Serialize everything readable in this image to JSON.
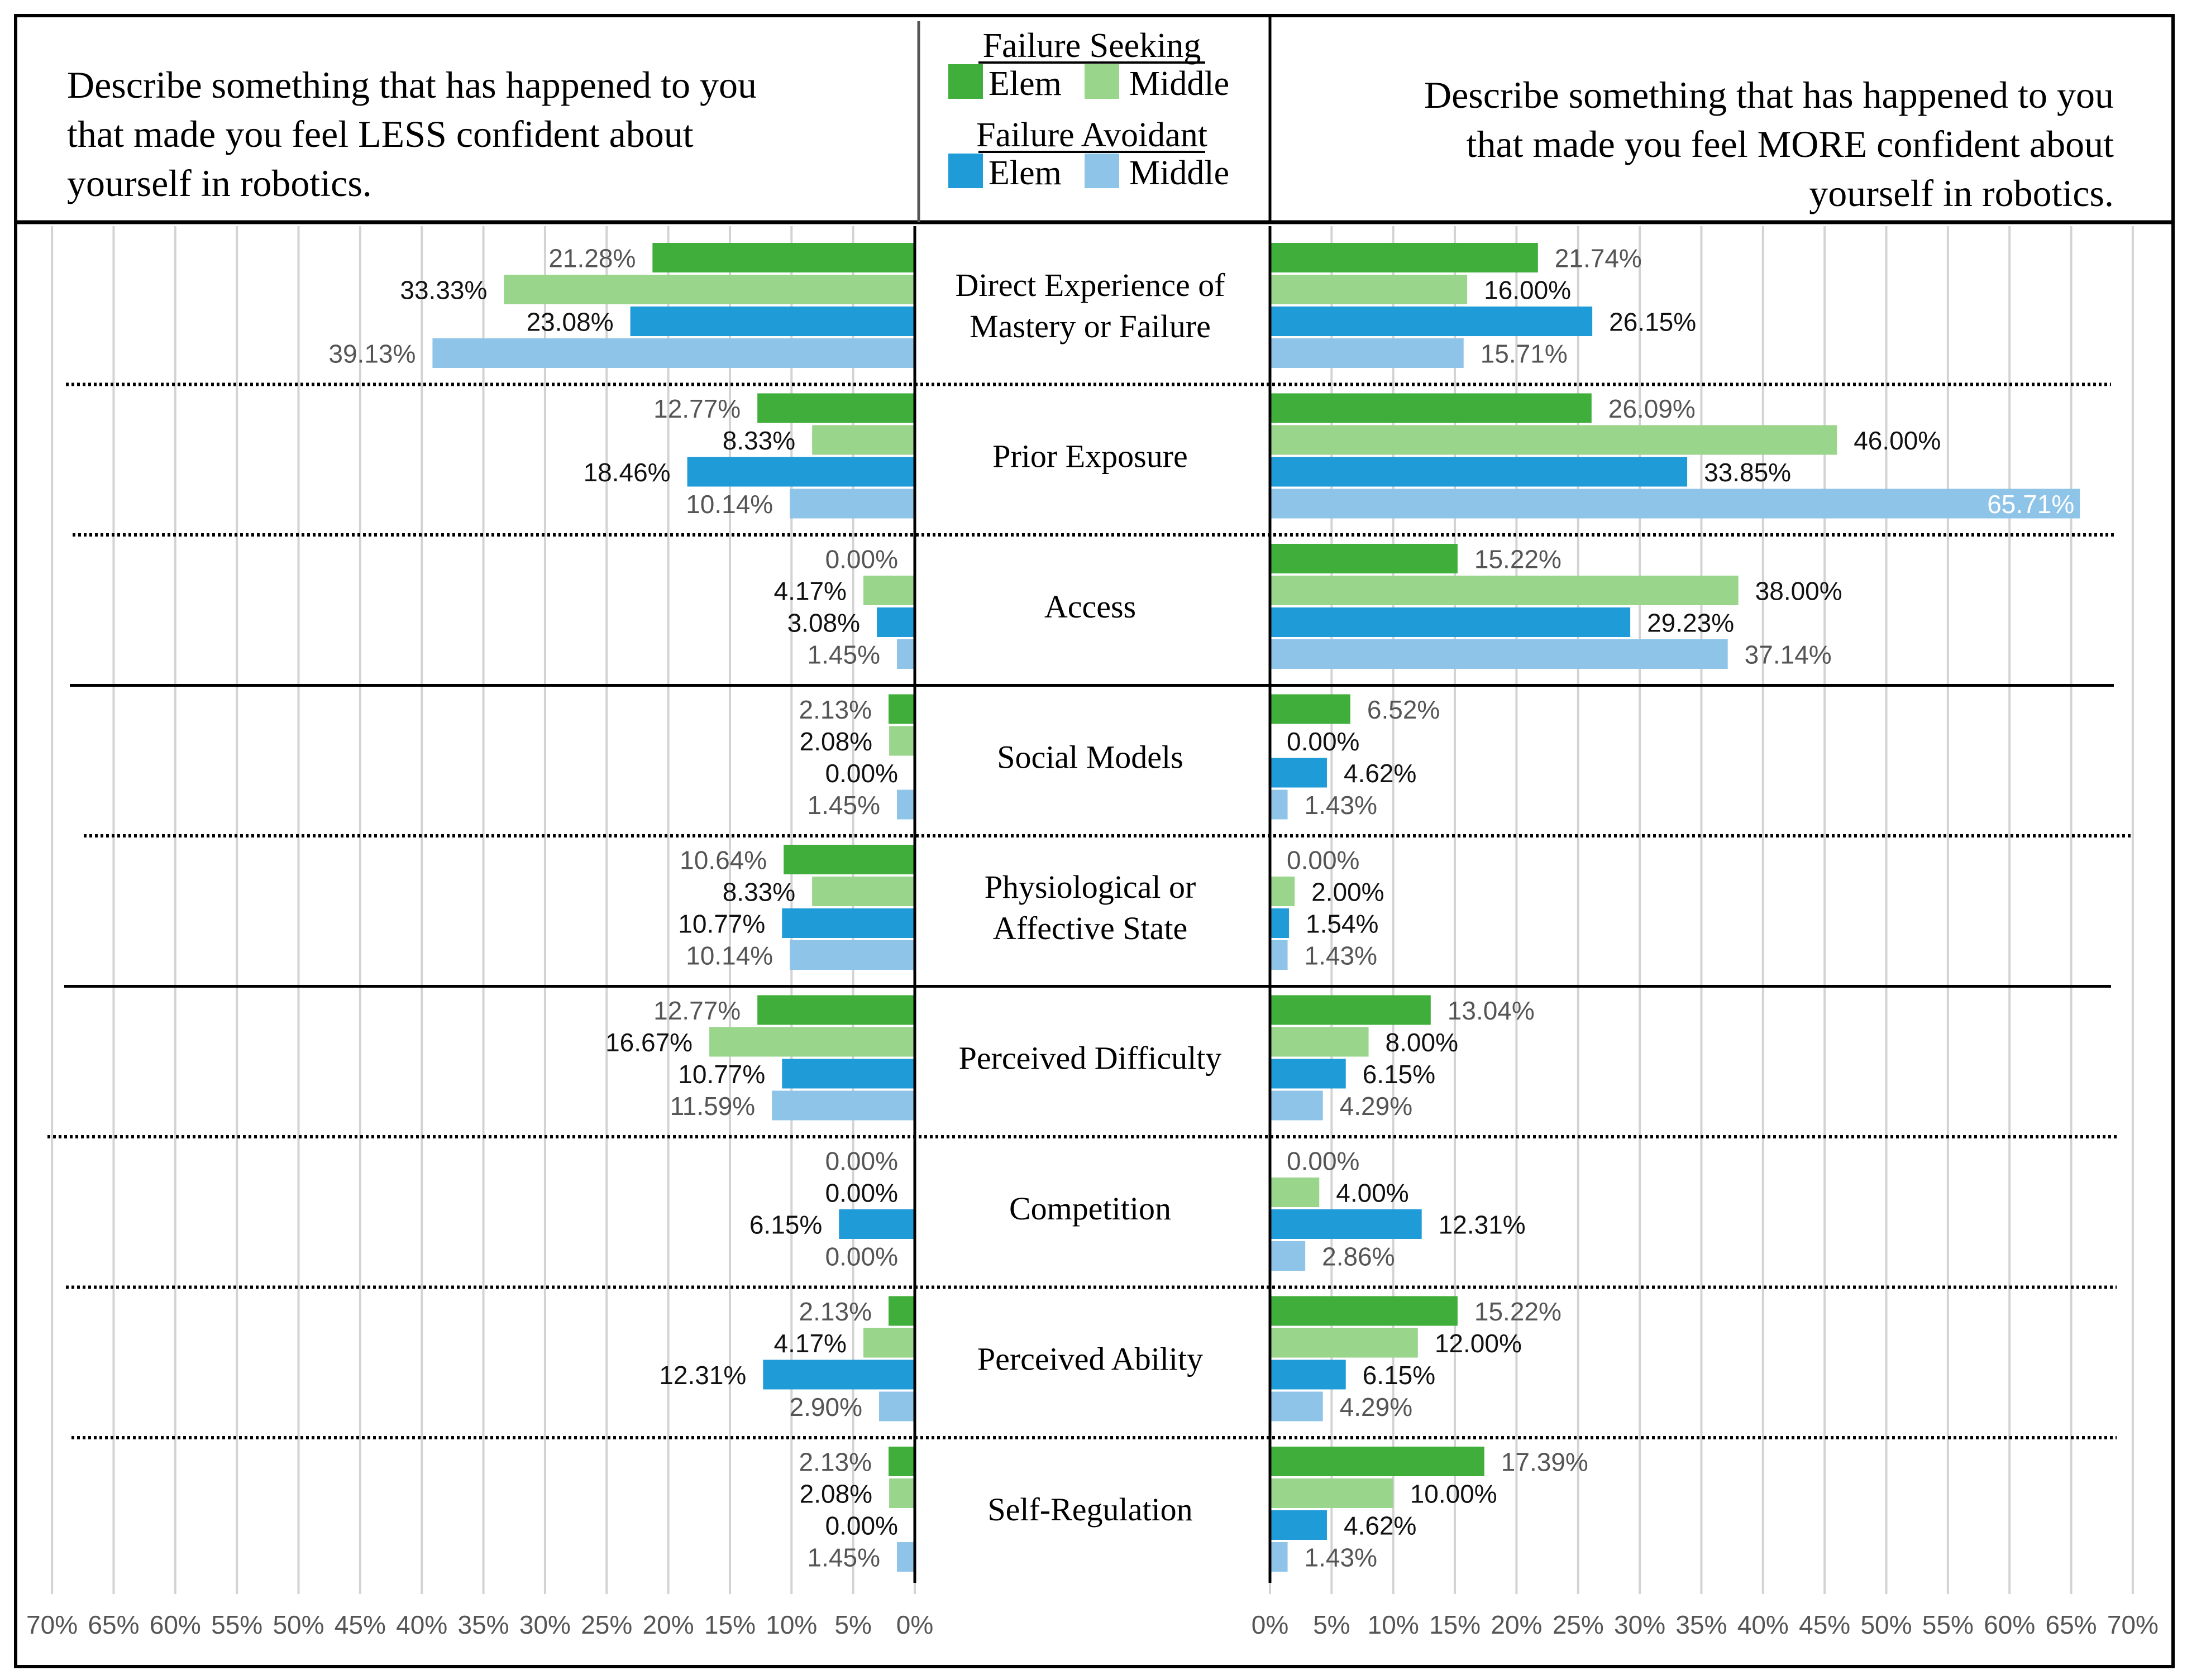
{
  "chart_data": {
    "type": "bar",
    "orientation": "horizontal-diverging",
    "left_title": "Describe something that has happened to you that made you feel LESS confident about yourself in robotics.",
    "right_title": "Describe something that has happened to you that made you feel MORE confident about yourself in robotics.",
    "legend": {
      "groups": [
        {
          "name": "Failure Seeking",
          "entries": [
            "Elem",
            "Middle"
          ]
        },
        {
          "name": "Failure Avoidant",
          "entries": [
            "Elem",
            "Middle"
          ]
        }
      ]
    },
    "series": [
      {
        "name": "Failure Seeking Elem",
        "color": "#3fae3a"
      },
      {
        "name": "Failure Seeking Middle",
        "color": "#99d58a"
      },
      {
        "name": "Failure Avoidant Elem",
        "color": "#1f9bd7"
      },
      {
        "name": "Failure Avoidant Middle",
        "color": "#8ec4e8"
      }
    ],
    "categories": [
      {
        "label": [
          "Direct Experience of",
          "Mastery or Failure"
        ],
        "less": [
          21.28,
          33.33,
          23.08,
          39.13
        ],
        "more": [
          21.74,
          16.0,
          26.15,
          15.71
        ]
      },
      {
        "label": [
          "Prior Exposure"
        ],
        "less": [
          12.77,
          8.33,
          18.46,
          10.14
        ],
        "more": [
          26.09,
          46.0,
          33.85,
          65.71
        ]
      },
      {
        "label": [
          "Access"
        ],
        "less": [
          0.0,
          4.17,
          3.08,
          1.45
        ],
        "more": [
          15.22,
          38.0,
          29.23,
          37.14
        ]
      },
      {
        "label": [
          "Social Models"
        ],
        "less": [
          2.13,
          2.08,
          0.0,
          1.45
        ],
        "more": [
          6.52,
          0.0,
          4.62,
          1.43
        ]
      },
      {
        "label": [
          "Physiological or",
          "Affective State"
        ],
        "less": [
          10.64,
          8.33,
          10.77,
          10.14
        ],
        "more": [
          0.0,
          2.0,
          1.54,
          1.43
        ]
      },
      {
        "label": [
          "Perceived Difficulty"
        ],
        "less": [
          12.77,
          16.67,
          10.77,
          11.59
        ],
        "more": [
          13.04,
          8.0,
          6.15,
          4.29
        ]
      },
      {
        "label": [
          "Competition"
        ],
        "less": [
          0.0,
          0.0,
          6.15,
          0.0
        ],
        "more": [
          0.0,
          4.0,
          12.31,
          2.86
        ]
      },
      {
        "label": [
          "Perceived Ability"
        ],
        "less": [
          2.13,
          4.17,
          12.31,
          2.9
        ],
        "more": [
          15.22,
          12.0,
          6.15,
          4.29
        ]
      },
      {
        "label": [
          "Self-Regulation"
        ],
        "less": [
          2.13,
          2.08,
          0.0,
          1.45
        ],
        "more": [
          17.39,
          10.0,
          4.62,
          1.43
        ]
      }
    ],
    "separators_after": [
      "dotted",
      "dotted",
      "solid",
      "dotted",
      "solid",
      "dotted",
      "dotted",
      "dotted"
    ],
    "xlim": [
      0,
      70
    ],
    "x_ticks": [
      0,
      5,
      10,
      15,
      20,
      25,
      30,
      35,
      40,
      45,
      50,
      55,
      60,
      65,
      70
    ],
    "tick_suffix": "%",
    "grid": true
  }
}
